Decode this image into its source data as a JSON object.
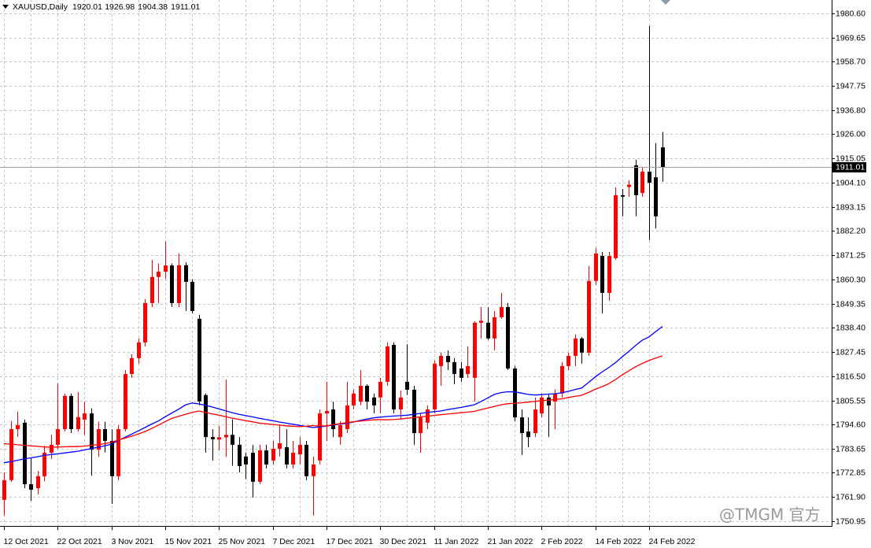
{
  "chart_data": {
    "type": "candlestick",
    "title": "XAUUSD,Daily",
    "watermark": "@TMGM 官方",
    "categories": [
      "12 Oct 2021",
      null,
      null,
      null,
      null,
      null,
      null,
      null,
      "22 Oct 2021",
      null,
      null,
      null,
      null,
      null,
      null,
      null,
      "3 Nov 2021",
      null,
      null,
      null,
      null,
      null,
      null,
      null,
      "15 Nov 2021",
      null,
      null,
      null,
      null,
      null,
      null,
      null,
      "25 Nov 2021",
      null,
      null,
      null,
      null,
      null,
      null,
      null,
      "7 Dec 2021",
      null,
      null,
      null,
      null,
      null,
      null,
      null,
      "17 Dec 2021",
      null,
      null,
      null,
      null,
      null,
      null,
      null,
      "30 Dec 2021",
      null,
      null,
      null,
      null,
      null,
      null,
      null,
      "11 Jan 2022",
      null,
      null,
      null,
      null,
      null,
      null,
      null,
      "21 Jan 2022",
      null,
      null,
      null,
      null,
      null,
      null,
      null,
      "2 Feb 2022",
      null,
      null,
      null,
      null,
      null,
      null,
      null,
      "14 Feb 2022",
      null,
      null,
      null,
      null,
      null,
      null,
      null,
      "24 Feb 2022",
      null,
      null
    ],
    "open": [
      1760.6,
      1769.5,
      1792.6,
      1795.5,
      1767.7,
      1765.9,
      1771.3,
      1781.9,
      1785.5,
      1792.6,
      1807.6,
      1792.6,
      1796.9,
      1799.7,
      1783.3,
      1792.6,
      1787.3,
      1771.3,
      1792.6,
      1817.5,
      1824.7,
      1831.8,
      1849.6,
      1861.4,
      1863.8,
      1866.6,
      1849.6,
      1866.7,
      1859.2,
      1842.5,
      1808,
      1789,
      1787.9,
      1788.9,
      1790,
      1785.5,
      1780.2,
      1781.9,
      1768.8,
      1783,
      1778.4,
      1783.7,
      1784.4,
      1776.6,
      1781.2,
      1785.5,
      1771.3,
      1778.4,
      1799.7,
      1801.5,
      1789,
      1792.6,
      1803.3,
      1805,
      1812.2,
      1806.9,
      1806.9,
      1814,
      1830.7,
      1801.5,
      1814,
      1810.4,
      1790.8,
      1795.5,
      1801.5,
      1821.1,
      1825.7,
      1822.9,
      1820,
      1817.5,
      1815.8,
      1840.7,
      1840.7,
      1833.6,
      1843.2,
      1847.8,
      1820,
      1797.9,
      1791.5,
      1790.8,
      1799.7,
      1806.9,
      1805.1,
      1808.7,
      1821.1,
      1825.7,
      1833.6,
      1827.2,
      1859.6,
      1870.9,
      1854.2,
      1869.9,
      1898.4,
      1902.1,
      1911.9,
      1899.4,
      1909,
      1906.5,
      1920.01
    ],
    "high": [
      1773,
      1796.2,
      1800.5,
      1796.9,
      1779.5,
      1773.7,
      1785,
      1790,
      1813.3,
      1808.7,
      1808.7,
      1809.4,
      1805,
      1802,
      1796,
      1796,
      1792.6,
      1794.4,
      1819.3,
      1826.4,
      1833.6,
      1851.4,
      1869.2,
      1867.4,
      1877.5,
      1867.5,
      1872,
      1868.1,
      1860.3,
      1844.3,
      1808.7,
      1792.6,
      1794,
      1815,
      1797,
      1789,
      1782,
      1785.5,
      1785.5,
      1785.5,
      1787.3,
      1794.4,
      1792.6,
      1787.3,
      1789,
      1787.3,
      1780.2,
      1801.5,
      1814,
      1805,
      1796.2,
      1814,
      1810.4,
      1819.3,
      1812.9,
      1808.7,
      1815.8,
      1831.8,
      1831.8,
      1810,
      1831,
      1812.2,
      1799.7,
      1803.3,
      1823.6,
      1827.2,
      1828.2,
      1824.7,
      1822.9,
      1830,
      1841.4,
      1847.8,
      1847.8,
      1846,
      1854.2,
      1849.6,
      1821.1,
      1801.5,
      1797.9,
      1806.9,
      1808.7,
      1808.7,
      1810.4,
      1822.9,
      1827.2,
      1835.4,
      1834.3,
      1866.3,
      1874.5,
      1872.7,
      1872.7,
      1901.9,
      1901.2,
      1905.1,
      1914.4,
      1911.2,
      1974.9,
      1921.9,
      1926.98
    ],
    "low": [
      1753.5,
      1768.8,
      1789.1,
      1765.9,
      1760.2,
      1763.1,
      1769,
      1779,
      1783.7,
      1791.5,
      1790.8,
      1791.5,
      1790,
      1771.5,
      1780,
      1782,
      1758.8,
      1769.5,
      1791.5,
      1815.8,
      1822.2,
      1830,
      1847.8,
      1849.6,
      1860.5,
      1847.8,
      1847.8,
      1846,
      1845,
      1803.3,
      1781.9,
      1778.4,
      1783,
      1780,
      1776,
      1773,
      1770,
      1761.7,
      1767.7,
      1774.8,
      1776.6,
      1780.2,
      1774.8,
      1774.8,
      1776.6,
      1769.5,
      1753.5,
      1776.6,
      1787.3,
      1789,
      1785.5,
      1790.8,
      1801.5,
      1803.3,
      1801.5,
      1799.7,
      1799.7,
      1812.2,
      1799.7,
      1797,
      1808,
      1785.5,
      1781.9,
      1792.6,
      1799.7,
      1812.2,
      1819.3,
      1812.9,
      1814,
      1815.8,
      1805.1,
      1833.6,
      1832.9,
      1828.2,
      1842.5,
      1819.3,
      1796.2,
      1780.9,
      1784.4,
      1789,
      1797.9,
      1789,
      1792.6,
      1806.9,
      1819.3,
      1821.1,
      1822.2,
      1825.7,
      1857.8,
      1844.9,
      1850.6,
      1869.2,
      1888.8,
      1897.7,
      1888.8,
      1897.7,
      1878.1,
      1883.4,
      1904.38
    ],
    "close": [
      1769.5,
      1792.6,
      1794.4,
      1767.7,
      1765.2,
      1771.3,
      1781.9,
      1785.5,
      1792.6,
      1807.6,
      1792.6,
      1798,
      1799.7,
      1783.3,
      1792.6,
      1787.3,
      1771.3,
      1792.6,
      1817.5,
      1824.7,
      1831.8,
      1849.6,
      1861.4,
      1863.8,
      1866.6,
      1849.6,
      1866.7,
      1859.2,
      1846,
      1805.1,
      1789,
      1788,
      1788.9,
      1790,
      1785.5,
      1775.9,
      1776.6,
      1768.8,
      1783,
      1776.6,
      1783.7,
      1786.2,
      1776.6,
      1781.9,
      1785.5,
      1771.3,
      1776.6,
      1799.7,
      1800.8,
      1792.6,
      1794.4,
      1803.3,
      1808.7,
      1812.2,
      1805,
      1803.3,
      1814,
      1830,
      1801.5,
      1806.9,
      1810.4,
      1790.8,
      1797.9,
      1801.5,
      1822.2,
      1825.7,
      1822.9,
      1817.5,
      1815.8,
      1821.1,
      1840.7,
      1841.6,
      1833.6,
      1843.2,
      1847.8,
      1820,
      1797.9,
      1790.8,
      1789,
      1801.5,
      1806.9,
      1803.3,
      1808.7,
      1821.1,
      1825.7,
      1833.6,
      1827.2,
      1859.6,
      1872,
      1854.2,
      1870.9,
      1898.4,
      1897.7,
      1903.1,
      1898.4,
      1909,
      1904,
      1888.8,
      1911.01
    ],
    "up_color": "#ff0000",
    "down_color": "#000000",
    "lines": [
      {
        "color": "#0000ff",
        "values": [
          1777.4,
          1777.9,
          1778.5,
          1779.1,
          1779.6,
          1780.1,
          1780.7,
          1781.1,
          1781.4,
          1781.8,
          1782.2,
          1782.6,
          1783.2,
          1783.8,
          1784.4,
          1785,
          1785.8,
          1787.4,
          1788.9,
          1790.3,
          1791.8,
          1793.3,
          1794.9,
          1796.3,
          1798.2,
          1799.9,
          1801.6,
          1803.5,
          1804.4,
          1804,
          1803.3,
          1802.6,
          1801.7,
          1800.9,
          1800,
          1799.3,
          1798.7,
          1798.1,
          1797.5,
          1796.9,
          1796.4,
          1795.8,
          1795.3,
          1794.8,
          1794.3,
          1793.8,
          1793.3,
          1793.6,
          1794,
          1794.4,
          1794.9,
          1795.2,
          1795.8,
          1796.5,
          1797.1,
          1797.7,
          1798,
          1798.3,
          1798.5,
          1798.7,
          1798.9,
          1799.3,
          1799.7,
          1800.1,
          1800.5,
          1800.8,
          1801.4,
          1801.9,
          1802.4,
          1803,
          1803.6,
          1805.1,
          1806.7,
          1808.3,
          1809.1,
          1809.5,
          1809.4,
          1808.9,
          1808.3,
          1808,
          1808.2,
          1808.4,
          1808.6,
          1809,
          1809.7,
          1810.5,
          1811.2,
          1813.7,
          1816.2,
          1818.4,
          1820.4,
          1822.6,
          1825.3,
          1827.7,
          1830.4,
          1832.8,
          1834.3,
          1836.7,
          1839
        ]
      },
      {
        "color": "#ff0000",
        "values": [
          1786,
          1785.8,
          1785.5,
          1785.3,
          1785,
          1784.8,
          1784.5,
          1784.4,
          1784.5,
          1784.6,
          1784.7,
          1784.7,
          1784.9,
          1785.3,
          1785.6,
          1786,
          1786.7,
          1787.6,
          1788.5,
          1789.4,
          1790.4,
          1791.5,
          1792.9,
          1794.4,
          1796,
          1797.5,
          1798.4,
          1799.3,
          1800.1,
          1800.8,
          1800.1,
          1799.5,
          1798.9,
          1798.2,
          1797.5,
          1797,
          1796.4,
          1795.9,
          1795.3,
          1795,
          1794.7,
          1794.4,
          1794.1,
          1793.9,
          1793.7,
          1793.9,
          1794.2,
          1794,
          1794.1,
          1794.6,
          1795.1,
          1795.5,
          1795.9,
          1796.2,
          1796.5,
          1796.8,
          1796.9,
          1796.8,
          1796.9,
          1797.2,
          1797.5,
          1797.8,
          1798.1,
          1798.4,
          1798.8,
          1799.1,
          1799.4,
          1799.7,
          1800,
          1800.3,
          1800.6,
          1801.4,
          1802.1,
          1802.9,
          1803.6,
          1804.1,
          1804.3,
          1804.5,
          1804.8,
          1805.1,
          1805.4,
          1805.7,
          1806,
          1806.3,
          1806.9,
          1807.4,
          1807.9,
          1809.2,
          1810.6,
          1811.8,
          1813.1,
          1815,
          1817.1,
          1818.9,
          1820.8,
          1822.3,
          1823.6,
          1824.7,
          1825.7
        ]
      }
    ],
    "ylim": [
      1748.8,
      1986.65
    ],
    "yticks": [
      {
        "value": 1980.6,
        "label": "1980.60"
      },
      {
        "value": 1969.65,
        "label": "1969.65"
      },
      {
        "value": 1958.7,
        "label": "1958.70"
      },
      {
        "value": 1947.75,
        "label": "1947.75"
      },
      {
        "value": 1936.8,
        "label": "1936.80"
      },
      {
        "value": 1926,
        "label": "1926.00"
      },
      {
        "value": 1915.05,
        "label": "1915.05"
      },
      {
        "value": 1904.1,
        "label": "1904.10"
      },
      {
        "value": 1893.15,
        "label": "1893.15"
      },
      {
        "value": 1882.2,
        "label": "1882.20"
      },
      {
        "value": 1871.25,
        "label": "1871.25"
      },
      {
        "value": 1860.3,
        "label": "1860.30"
      },
      {
        "value": 1849.35,
        "label": "1849.35"
      },
      {
        "value": 1838.4,
        "label": "1838.40"
      },
      {
        "value": 1827.45,
        "label": "1827.45"
      },
      {
        "value": 1816.5,
        "label": "1816.50"
      },
      {
        "value": 1805.55,
        "label": "1805.55"
      },
      {
        "value": 1794.6,
        "label": "1794.60"
      },
      {
        "value": 1783.65,
        "label": "1783.65"
      },
      {
        "value": 1772.85,
        "label": "1772.85"
      },
      {
        "value": 1761.9,
        "label": "1761.90"
      },
      {
        "value": 1750.95,
        "label": "1750.95"
      }
    ],
    "grid": true
  }
}
